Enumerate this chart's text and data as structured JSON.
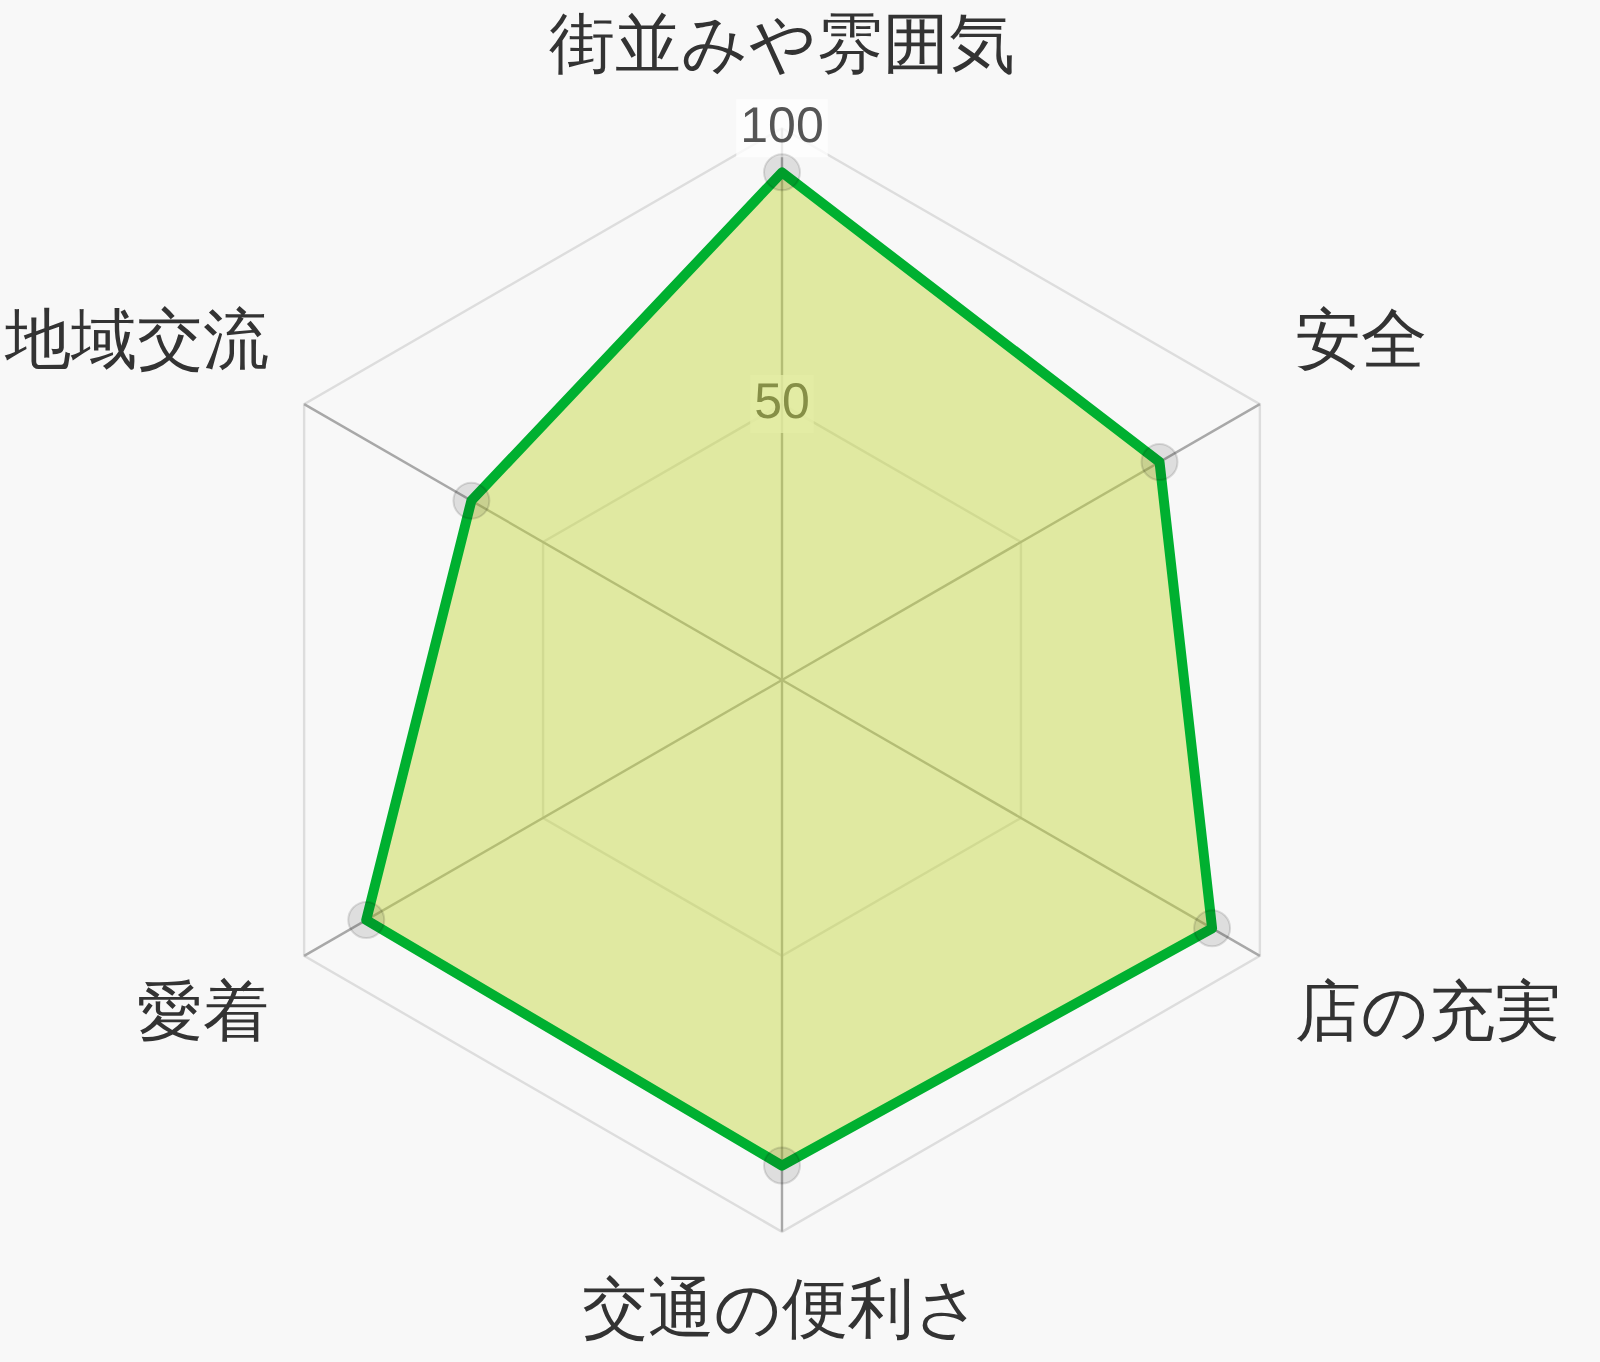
{
  "chart_data": {
    "type": "radar",
    "categories": [
      "街並みや雰囲気",
      "安全",
      "店の充実",
      "交通の便利さ",
      "愛着",
      "地域交流"
    ],
    "series": [
      {
        "color": "#00b030",
        "values": [
          92,
          79,
          90,
          88,
          87,
          65
        ]
      }
    ],
    "ylim": [
      0,
      100
    ],
    "yticks": [
      50,
      100
    ],
    "grid": true,
    "marker": "circle"
  }
}
